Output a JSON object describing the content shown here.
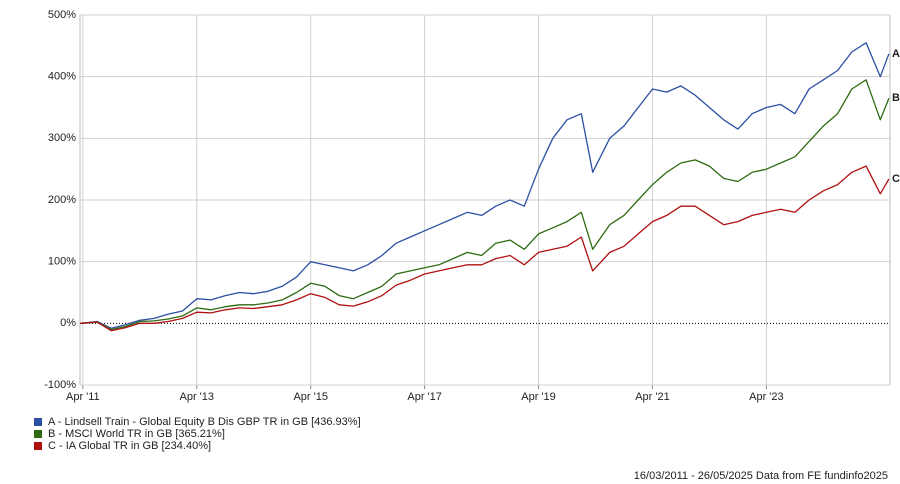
{
  "chart_data": {
    "type": "line",
    "x": [
      2011.21,
      2011.5,
      2011.75,
      2012.0,
      2012.25,
      2012.5,
      2012.75,
      2013.0,
      2013.25,
      2013.5,
      2013.75,
      2014.0,
      2014.25,
      2014.5,
      2014.75,
      2015.0,
      2015.25,
      2015.5,
      2015.75,
      2016.0,
      2016.25,
      2016.5,
      2016.75,
      2017.0,
      2017.25,
      2017.5,
      2017.75,
      2018.0,
      2018.25,
      2018.5,
      2018.75,
      2019.0,
      2019.25,
      2019.5,
      2019.75,
      2020.0,
      2020.2,
      2020.5,
      2020.75,
      2021.0,
      2021.25,
      2021.5,
      2021.75,
      2022.0,
      2022.25,
      2022.5,
      2022.75,
      2023.0,
      2023.25,
      2023.5,
      2023.75,
      2024.0,
      2024.25,
      2024.5,
      2024.75,
      2025.0,
      2025.25,
      2025.4
    ],
    "series": [
      {
        "name": "A - Lindsell Train - Global Equity B Dis GBP TR in GB [436.93%]",
        "end_label": "A",
        "color": "#2b4fa3",
        "values": [
          0,
          3,
          -8,
          -2,
          5,
          8,
          15,
          20,
          40,
          38,
          45,
          50,
          48,
          52,
          60,
          75,
          100,
          95,
          90,
          85,
          95,
          110,
          130,
          140,
          150,
          160,
          170,
          180,
          175,
          190,
          200,
          190,
          250,
          300,
          330,
          340,
          245,
          300,
          320,
          350,
          380,
          375,
          385,
          370,
          350,
          330,
          315,
          340,
          350,
          355,
          340,
          380,
          395,
          410,
          440,
          455,
          400,
          437
        ]
      },
      {
        "name": "B - MSCI World TR in GB [365.21%]",
        "end_label": "B",
        "color": "#2e6b12",
        "values": [
          0,
          2,
          -10,
          -5,
          3,
          4,
          7,
          12,
          25,
          22,
          27,
          30,
          30,
          33,
          38,
          50,
          65,
          60,
          45,
          40,
          50,
          60,
          80,
          85,
          90,
          95,
          105,
          115,
          110,
          130,
          135,
          120,
          145,
          155,
          165,
          180,
          120,
          160,
          175,
          200,
          225,
          245,
          260,
          265,
          255,
          235,
          230,
          245,
          250,
          260,
          270,
          295,
          320,
          340,
          380,
          395,
          330,
          365
        ]
      },
      {
        "name": "C - IA Global TR in GB [234.40%]",
        "end_label": "C",
        "color": "#b01010",
        "values": [
          0,
          2,
          -12,
          -7,
          0,
          0,
          3,
          8,
          18,
          17,
          22,
          25,
          24,
          27,
          30,
          38,
          48,
          42,
          30,
          28,
          35,
          45,
          62,
          70,
          80,
          85,
          90,
          95,
          95,
          105,
          110,
          95,
          115,
          120,
          125,
          140,
          85,
          115,
          125,
          145,
          165,
          175,
          190,
          190,
          175,
          160,
          165,
          175,
          180,
          185,
          180,
          200,
          215,
          225,
          245,
          255,
          210,
          234
        ]
      }
    ],
    "xlim": [
      2011.2,
      2025.42
    ],
    "xticks": [
      {
        "value": 2011.25,
        "label": "Apr '11"
      },
      {
        "value": 2013.25,
        "label": "Apr '13"
      },
      {
        "value": 2015.25,
        "label": "Apr '15"
      },
      {
        "value": 2017.25,
        "label": "Apr '17"
      },
      {
        "value": 2019.25,
        "label": "Apr '19"
      },
      {
        "value": 2021.25,
        "label": "Apr '21"
      },
      {
        "value": 2023.25,
        "label": "Apr '23"
      }
    ],
    "ylim": [
      -100,
      500
    ],
    "yticks": [
      {
        "value": -100,
        "label": "-100%"
      },
      {
        "value": 0,
        "label": "0%"
      },
      {
        "value": 100,
        "label": "100%"
      },
      {
        "value": 200,
        "label": "200%"
      },
      {
        "value": 300,
        "label": "300%"
      },
      {
        "value": 400,
        "label": "400%"
      },
      {
        "value": 500,
        "label": "500%"
      }
    ],
    "grid": true,
    "footer": "16/03/2011 - 26/05/2025 Data from FE fundinfo2025"
  }
}
